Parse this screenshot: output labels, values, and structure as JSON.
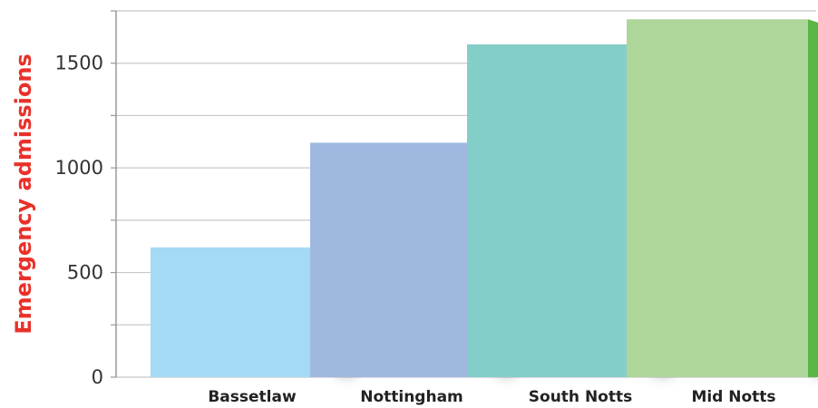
{
  "chart_data": {
    "type": "bar",
    "title": "",
    "xlabel": "",
    "ylabel": "Emergency admissions",
    "categories": [
      "Bassetlaw",
      "Nottingham",
      "South Notts",
      "Mid Notts"
    ],
    "values": [
      620,
      1120,
      1590,
      1710
    ],
    "ylim": [
      0,
      1750
    ],
    "y_ticks": [
      0,
      500,
      1000,
      1500
    ],
    "y_minor_ticks": [
      250,
      750,
      1250,
      1750
    ],
    "grid": true,
    "legend": "none",
    "colors": {
      "ylabel": "#e8312a",
      "grid": "#c8c8c8",
      "bars": [
        {
          "front": "#a4daf6",
          "side": "#29b7ea"
        },
        {
          "front": "#9fb8e0",
          "side": "#0271bb"
        },
        {
          "front": "#84ceca",
          "side": "#00ab9e"
        },
        {
          "front": "#aed69a",
          "side": "#5bb646"
        }
      ]
    }
  }
}
